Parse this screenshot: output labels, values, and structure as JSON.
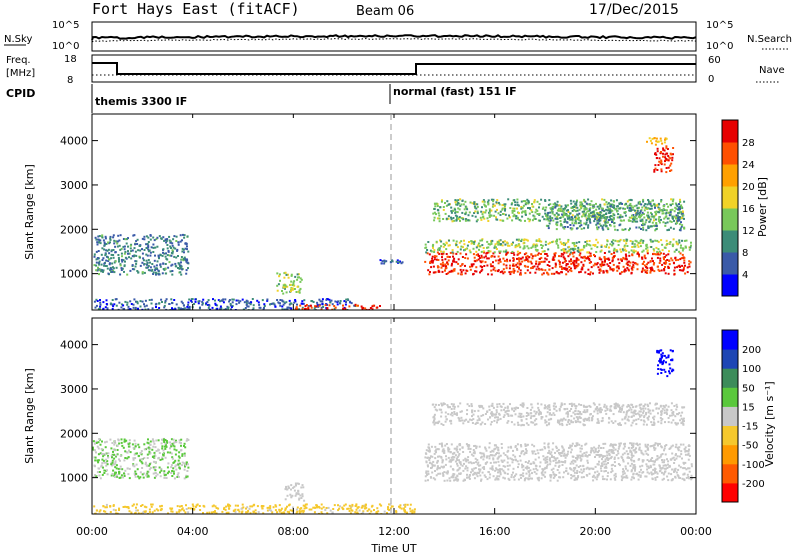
{
  "header": {
    "title": "Fort Hays East (fitACF)",
    "beam": "Beam 06",
    "date": "17/Dec/2015"
  },
  "noise_panel": {
    "left_label": "N.Sky",
    "left_ticks": [
      "10^5",
      "10^0"
    ],
    "right_label": "N.Search",
    "right_ticks": [
      "10^5",
      "10^0"
    ]
  },
  "freq_panel": {
    "left_label_line1": "Freq.",
    "left_label_line2": "[MHz]",
    "left_ticks": [
      "18",
      "8"
    ],
    "right_label": "Nave",
    "right_ticks": [
      "60",
      "0"
    ]
  },
  "cpid": {
    "label": "CPID",
    "segments": [
      "themis 3300 IF",
      "normal (fast) 151 IF"
    ]
  },
  "colors": {
    "power": [
      "#0000ff",
      "#3a5aa8",
      "#3c8c78",
      "#78c85a",
      "#f0d228",
      "#ffa000",
      "#ff5000",
      "#e60000"
    ],
    "velocity": [
      "#ff0000",
      "#ff5a00",
      "#ff9a00",
      "#f5c82d",
      "#c8c8c8",
      "#5ac83c",
      "#3c8c5a",
      "#1e46b4",
      "#0000ff"
    ]
  },
  "chart_data": [
    {
      "type": "heatmap",
      "name": "Power",
      "ylabel": "Slant Range [km]",
      "yticks": [
        1000,
        2000,
        3000,
        4000
      ],
      "ylim": [
        180,
        4600
      ],
      "xlim": [
        0,
        24
      ],
      "xticks": [
        "00:00",
        "04:00",
        "08:00",
        "12:00",
        "16:00",
        "20:00",
        "00:00"
      ],
      "colorbar": {
        "label": "Power [dB]",
        "ticks": [
          "4",
          "8",
          "12",
          "16",
          "20",
          "24",
          "28"
        ],
        "range": [
          0,
          30
        ]
      },
      "regions": [
        {
          "t0": 0.0,
          "t1": 3.8,
          "r0": 1000,
          "r1": 1900,
          "value": 8
        },
        {
          "t0": 0.0,
          "t1": 10.5,
          "r0": 200,
          "r1": 450,
          "value": 6
        },
        {
          "t0": 7.3,
          "t1": 8.3,
          "r0": 550,
          "r1": 1050,
          "value": 14
        },
        {
          "t0": 8.0,
          "t1": 11.5,
          "r0": 200,
          "r1": 320,
          "value": 26
        },
        {
          "t0": 13.2,
          "t1": 23.8,
          "r0": 1000,
          "r1": 1500,
          "value": 27
        },
        {
          "t0": 13.2,
          "t1": 23.8,
          "r0": 1500,
          "r1": 1800,
          "value": 14
        },
        {
          "t0": 13.5,
          "t1": 23.5,
          "r0": 2200,
          "r1": 2700,
          "value": 12
        },
        {
          "t0": 18.0,
          "t1": 23.5,
          "r0": 2000,
          "r1": 2600,
          "value": 10
        },
        {
          "t0": 22.3,
          "t1": 23.1,
          "r0": 3300,
          "r1": 3900,
          "value": 27
        },
        {
          "t0": 22.0,
          "t1": 22.8,
          "r0": 3900,
          "r1": 4100,
          "value": 18
        },
        {
          "t0": 11.3,
          "t1": 12.3,
          "r0": 1250,
          "r1": 1330,
          "value": 6
        }
      ]
    },
    {
      "type": "heatmap",
      "name": "Velocity",
      "ylabel": "Slant Range [km]",
      "xlabel": "Time UT",
      "yticks": [
        1000,
        2000,
        3000,
        4000
      ],
      "ylim": [
        180,
        4600
      ],
      "xlim": [
        0,
        24
      ],
      "xticks": [
        "00:00",
        "04:00",
        "08:00",
        "12:00",
        "16:00",
        "20:00",
        "00:00"
      ],
      "colorbar": {
        "label": "Velocity [m s⁻¹]",
        "ticks": [
          "200",
          "100",
          "50",
          "15",
          "-15",
          "-50",
          "-100",
          "-200"
        ],
        "range": [
          -250,
          250
        ]
      },
      "regions": [
        {
          "t0": 0.0,
          "t1": 3.8,
          "r0": 1000,
          "r1": 1900,
          "value": 30
        },
        {
          "t0": 0.0,
          "t1": 12.8,
          "r0": 200,
          "r1": 420,
          "value": -40
        },
        {
          "t0": 7.6,
          "t1": 8.4,
          "r0": 500,
          "r1": 900,
          "value": 0
        },
        {
          "t0": 13.2,
          "t1": 23.8,
          "r0": 950,
          "r1": 1800,
          "value": 0
        },
        {
          "t0": 13.5,
          "t1": 23.5,
          "r0": 2200,
          "r1": 2700,
          "value": 0
        },
        {
          "t0": 22.4,
          "t1": 23.1,
          "r0": 3300,
          "r1": 3900,
          "value": 220
        }
      ]
    }
  ]
}
